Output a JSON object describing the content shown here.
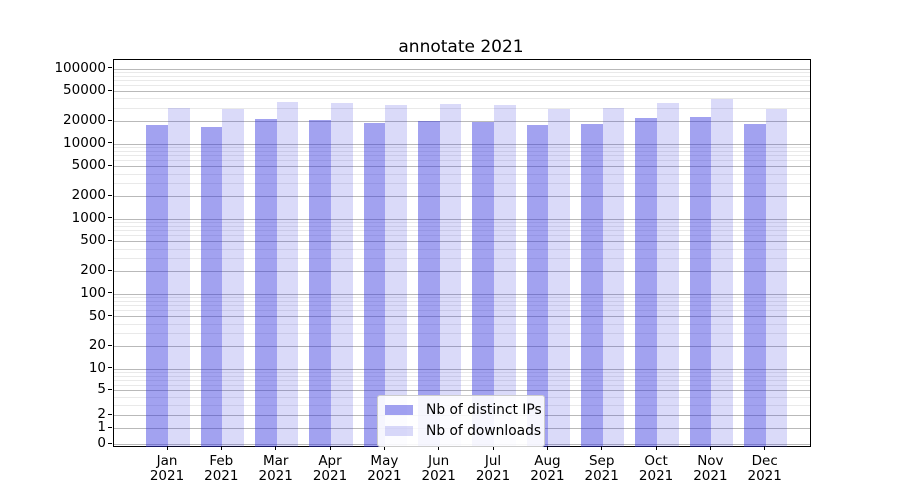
{
  "chart_data": {
    "type": "bar",
    "title": "annotate 2021",
    "categories": [
      "Jan",
      "Feb",
      "Mar",
      "Apr",
      "May",
      "Jun",
      "Jul",
      "Aug",
      "Sep",
      "Oct",
      "Nov",
      "Dec"
    ],
    "xtick_year": "2021",
    "series": [
      {
        "name": "Nb of distinct IPs",
        "color": "rgba(48,48,222,0.45)",
        "color_hex_on_white": "#a2a2f0",
        "values": [
          17800,
          16700,
          21300,
          20700,
          18900,
          20100,
          19500,
          17800,
          18200,
          22000,
          22700,
          18200
        ]
      },
      {
        "name": "Nb of downloads",
        "color": "rgba(48,48,222,0.18)",
        "color_hex_on_white": "#dadaf9",
        "values": [
          29900,
          29000,
          35900,
          34900,
          32800,
          33800,
          32300,
          29000,
          30300,
          35300,
          38900,
          29100
        ]
      }
    ],
    "y_axis": {
      "scale": "symlog",
      "tick_labels": [
        0,
        1,
        2,
        5,
        10,
        20,
        50,
        100,
        200,
        500,
        1000,
        2000,
        5000,
        10000,
        20000,
        50000,
        100000
      ],
      "ylim_top": 130000
    },
    "grid": {
      "major_color": "#b9b9b9",
      "minor_color": "#e9e9e9"
    },
    "legend_position": "lower center",
    "axis_color": "#000000",
    "background_color": "#ffffff"
  }
}
